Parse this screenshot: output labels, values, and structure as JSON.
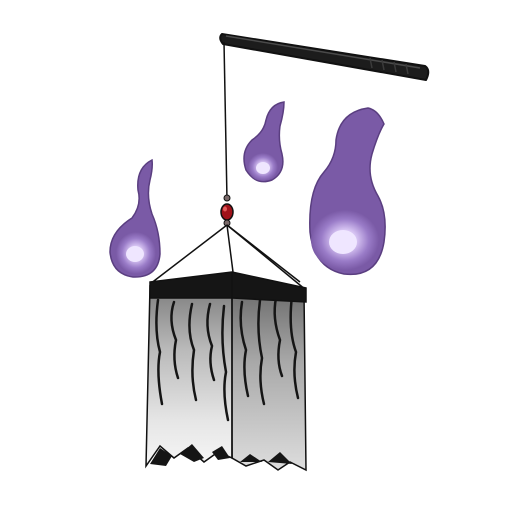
{
  "scene": {
    "subject": "hanging-ghost-lantern",
    "colors": {
      "background": "#ffffff",
      "outline": "#111111",
      "pole": "#1c1c1c",
      "pole_highlight": "#4a4a4a",
      "flame_outer": "#7a5aa6",
      "flame_mid": "#8f70bf",
      "flame_glow": "#c7b2ec",
      "flame_core": "#efe6ff",
      "bead": "#a0121a",
      "bead_cap": "#7a6a6a",
      "cloth_light": "#f2f2f2",
      "cloth_mid": "#cfcfcf",
      "cloth_dark": "#8e8e8e",
      "band": "#151515"
    },
    "flame_count": 3
  }
}
